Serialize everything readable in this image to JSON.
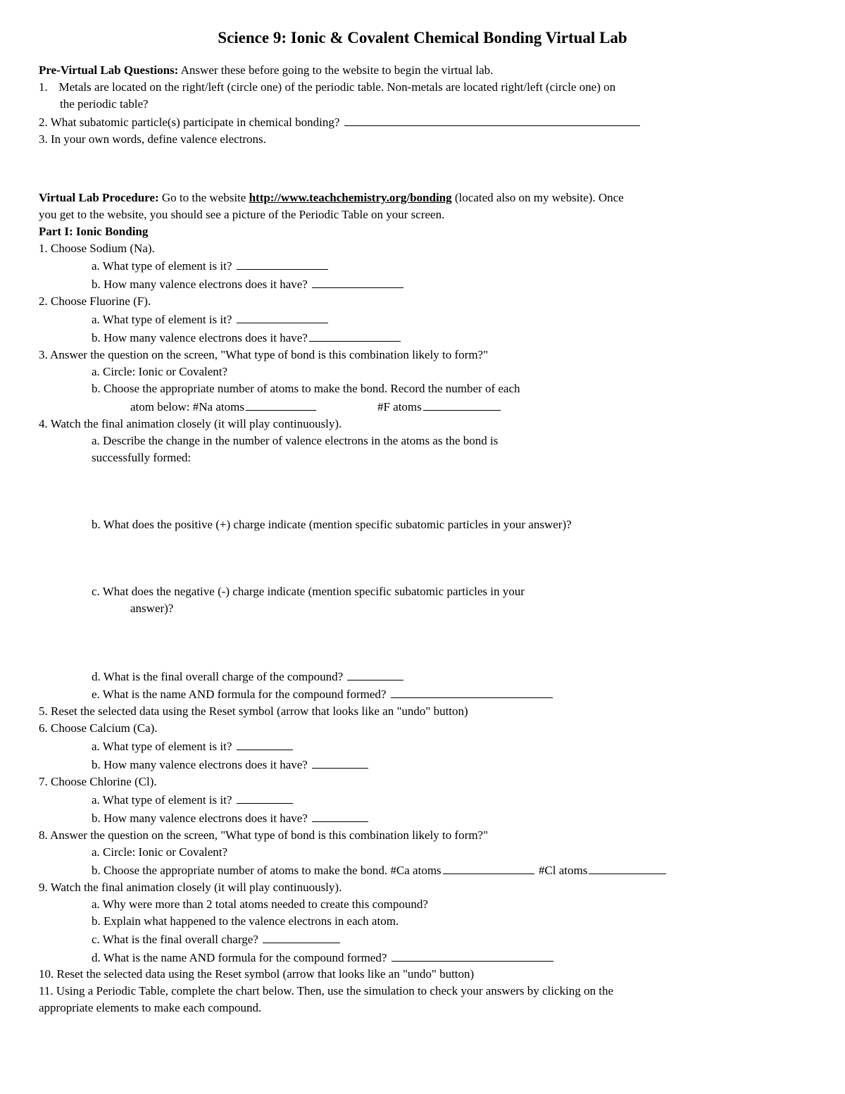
{
  "title": "Science 9: Ionic & Covalent Chemical Bonding Virtual Lab",
  "pre": {
    "heading": "Pre-Virtual Lab Questions:",
    "heading_after": " Answer these before going to the website to begin the virtual lab.",
    "q1_num": "1.",
    "q1a": "Metals are located on the right/left (circle one) of the periodic table. Non-metals are located right/left (circle one) on",
    "q1b": "the periodic table?",
    "q2_num": "2.",
    "q2": " What subatomic particle(s) participate in chemical bonding? ",
    "q3_num": "3.",
    "q3": " In your own words, define valence electrons."
  },
  "proc": {
    "heading": "Virtual Lab Procedure:",
    "intro_before": " Go to the website ",
    "url": "http://www.teachchemistry.org/bonding",
    "intro_after1": " (located also on my website). Once",
    "intro_after2": "you get to the website, you should see a picture of the Periodic Table on your screen.",
    "part_heading": "Part I: Ionic Bonding",
    "s1": "1. Choose Sodium (Na).",
    "s1a": "a. What type of element is it? ",
    "s1b": "b. How many valence electrons does it have? ",
    "s2": "2. Choose Fluorine (F).",
    "s2a": "a. What type of element is it? ",
    "s2b": "b. How many valence electrons does it have?",
    "s3": "3. Answer the question on the screen, \"What type of bond is this combination likely to form?\"",
    "s3a": "a. Circle: Ionic or Covalent?",
    "s3b": "b. Choose the appropriate number of atoms to make the bond. Record the number of each",
    "s3b_line2a": "atom below: #Na atoms",
    "s3b_line2b": "#F atoms",
    "s4": "4. Watch the final animation closely (it will play continuously).",
    "s4a1": "a. Describe the change in the number of valence electrons in the atoms as the bond is",
    "s4a2": "successfully formed:",
    "s4b": "b. What does the positive (+) charge indicate (mention specific subatomic particles in your answer)?",
    "s4c1": "c. What does the negative (-) charge indicate (mention specific subatomic particles in your",
    "s4c2": "answer)?",
    "s4d": "d. What is the final overall charge of the compound? ",
    "s4e": "e. What is the name AND formula for the compound formed? ",
    "s5": "5. Reset the selected data using the Reset symbol (arrow that looks like an \"undo\" button)",
    "s6": "6. Choose Calcium (Ca).",
    "s6a": "a. What type of element is it? ",
    "s6b": "b. How many valence electrons does it have? ",
    "s7": "7. Choose Chlorine (Cl).",
    "s7a": "a. What type of element is it? ",
    "s7b": "b. How many valence electrons does it have? ",
    "s8": "8. Answer the question on the screen, \"What type of bond is this combination likely to form?\"",
    "s8a": "a. Circle: Ionic or Covalent?",
    "s8b_pre": "b. Choose the appropriate number of atoms to make the bond. #Ca atoms",
    "s8b_mid": " #Cl atoms",
    "s9": "9. Watch the final animation closely (it will play continuously).",
    "s9a": "a. Why were more than 2 total atoms needed to create this compound?",
    "s9b": "b. Explain what happened to the valence electrons in each atom.",
    "s9c": "c. What is the final overall charge? ",
    "s9d": "d. What is the name AND formula for the compound formed? ",
    "s10": "10. Reset the selected data using the Reset symbol (arrow that looks like an \"undo\" button)",
    "s11a": "11. Using a Periodic Table, complete the chart below. Then, use the simulation to check your answers by clicking on the",
    "s11b": "appropriate elements to make each compound."
  }
}
